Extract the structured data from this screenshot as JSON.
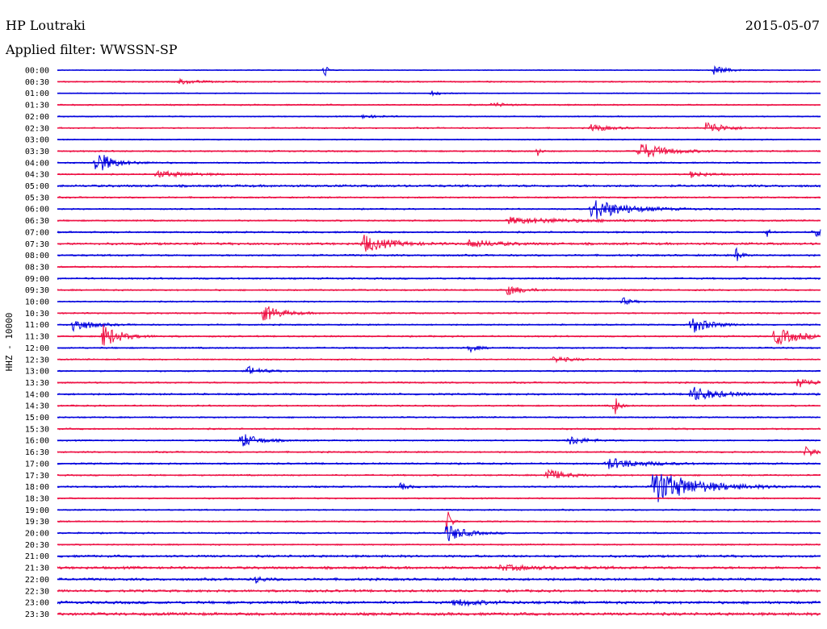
{
  "header": {
    "station": "HP Loutraki",
    "date": "2015-05-07",
    "filter_label": "Applied filter: WWSSN-SP"
  },
  "chart_data": {
    "type": "line",
    "title": "HP Loutraki",
    "ylabel": "HHZ - 10000",
    "colors": [
      "#0000dd",
      "#ee1144"
    ],
    "rows": [
      "00:00",
      "00:30",
      "01:00",
      "01:30",
      "02:00",
      "02:30",
      "03:00",
      "03:30",
      "04:00",
      "04:30",
      "05:00",
      "05:30",
      "06:00",
      "06:30",
      "07:00",
      "07:30",
      "08:00",
      "08:30",
      "09:00",
      "09:30",
      "10:00",
      "10:30",
      "11:00",
      "11:30",
      "12:00",
      "12:30",
      "13:00",
      "13:30",
      "14:00",
      "14:30",
      "15:00",
      "15:30",
      "16:00",
      "16:30",
      "17:00",
      "17:30",
      "18:00",
      "18:30",
      "19:00",
      "19:30",
      "20:00",
      "20:30",
      "21:00",
      "21:30",
      "22:00",
      "22:30",
      "23:00",
      "23:30"
    ],
    "noise_level": [
      0.6,
      1.0,
      0.7,
      1.0,
      0.8,
      1.0,
      0.8,
      1.1,
      1.0,
      1.0,
      1.6,
      1.1,
      1.0,
      1.1,
      1.2,
      1.6,
      1.3,
      1.1,
      1.2,
      1.1,
      1.0,
      1.1,
      1.0,
      1.1,
      1.1,
      1.0,
      1.0,
      1.1,
      1.3,
      1.1,
      1.0,
      1.1,
      1.0,
      1.1,
      1.2,
      1.1,
      1.2,
      1.0,
      1.0,
      1.0,
      1.1,
      1.0,
      1.6,
      1.8,
      1.7,
      1.7,
      1.9,
      2.0
    ],
    "events": [
      {
        "row": 0,
        "t": 0.35,
        "amp": 9,
        "dur": 0.004
      },
      {
        "row": 0,
        "t": 0.86,
        "amp": 6,
        "dur": 0.015
      },
      {
        "row": 1,
        "t": 0.16,
        "amp": 3,
        "dur": 0.02
      },
      {
        "row": 2,
        "t": 0.49,
        "amp": 3,
        "dur": 0.01
      },
      {
        "row": 3,
        "t": 0.57,
        "amp": 3,
        "dur": 0.015
      },
      {
        "row": 4,
        "t": 0.4,
        "amp": 2,
        "dur": 0.02
      },
      {
        "row": 5,
        "t": 0.7,
        "amp": 5,
        "dur": 0.02
      },
      {
        "row": 5,
        "t": 0.85,
        "amp": 9,
        "dur": 0.02
      },
      {
        "row": 7,
        "t": 0.76,
        "amp": 12,
        "dur": 0.03
      },
      {
        "row": 7,
        "t": 0.63,
        "amp": 7,
        "dur": 0.003
      },
      {
        "row": 8,
        "t": 0.05,
        "amp": 16,
        "dur": 0.02
      },
      {
        "row": 9,
        "t": 0.13,
        "amp": 4,
        "dur": 0.04
      },
      {
        "row": 9,
        "t": 0.83,
        "amp": 4,
        "dur": 0.02
      },
      {
        "row": 12,
        "t": 0.7,
        "amp": 14,
        "dur": 0.04
      },
      {
        "row": 13,
        "t": 0.59,
        "amp": 4,
        "dur": 0.08
      },
      {
        "row": 14,
        "t": 0.99,
        "amp": 5,
        "dur": 0.02
      },
      {
        "row": 14,
        "t": 0.93,
        "amp": 6,
        "dur": 0.003
      },
      {
        "row": 15,
        "t": 0.4,
        "amp": 11,
        "dur": 0.03
      },
      {
        "row": 15,
        "t": 0.54,
        "amp": 5,
        "dur": 0.03
      },
      {
        "row": 16,
        "t": 0.89,
        "amp": 11,
        "dur": 0.005
      },
      {
        "row": 19,
        "t": 0.59,
        "amp": 6,
        "dur": 0.02
      },
      {
        "row": 20,
        "t": 0.74,
        "amp": 5,
        "dur": 0.01
      },
      {
        "row": 21,
        "t": 0.27,
        "amp": 11,
        "dur": 0.02
      },
      {
        "row": 22,
        "t": 0.02,
        "amp": 10,
        "dur": 0.02
      },
      {
        "row": 22,
        "t": 0.83,
        "amp": 12,
        "dur": 0.02
      },
      {
        "row": 23,
        "t": 0.06,
        "amp": 15,
        "dur": 0.02
      },
      {
        "row": 23,
        "t": 0.94,
        "amp": 11,
        "dur": 0.03
      },
      {
        "row": 24,
        "t": 0.54,
        "amp": 5,
        "dur": 0.01
      },
      {
        "row": 25,
        "t": 0.65,
        "amp": 4,
        "dur": 0.02
      },
      {
        "row": 26,
        "t": 0.25,
        "amp": 6,
        "dur": 0.015
      },
      {
        "row": 27,
        "t": 0.97,
        "amp": 6,
        "dur": 0.02
      },
      {
        "row": 28,
        "t": 0.83,
        "amp": 10,
        "dur": 0.03
      },
      {
        "row": 29,
        "t": 0.73,
        "amp": 14,
        "dur": 0.005
      },
      {
        "row": 32,
        "t": 0.24,
        "amp": 10,
        "dur": 0.02
      },
      {
        "row": 32,
        "t": 0.67,
        "amp": 6,
        "dur": 0.02
      },
      {
        "row": 33,
        "t": 0.98,
        "amp": 6,
        "dur": 0.02
      },
      {
        "row": 34,
        "t": 0.72,
        "amp": 7,
        "dur": 0.04
      },
      {
        "row": 35,
        "t": 0.64,
        "amp": 9,
        "dur": 0.02
      },
      {
        "row": 36,
        "t": 0.78,
        "amp": 22,
        "dur": 0.05
      },
      {
        "row": 36,
        "t": 0.45,
        "amp": 4,
        "dur": 0.01
      },
      {
        "row": 39,
        "t": 0.51,
        "amp": 18,
        "dur": 0.005
      },
      {
        "row": 40,
        "t": 0.51,
        "amp": 12,
        "dur": 0.02
      },
      {
        "row": 43,
        "t": 0.58,
        "amp": 3,
        "dur": 0.05
      },
      {
        "row": 44,
        "t": 0.26,
        "amp": 4,
        "dur": 0.01
      },
      {
        "row": 46,
        "t": 0.52,
        "amp": 4,
        "dur": 0.03
      }
    ]
  }
}
